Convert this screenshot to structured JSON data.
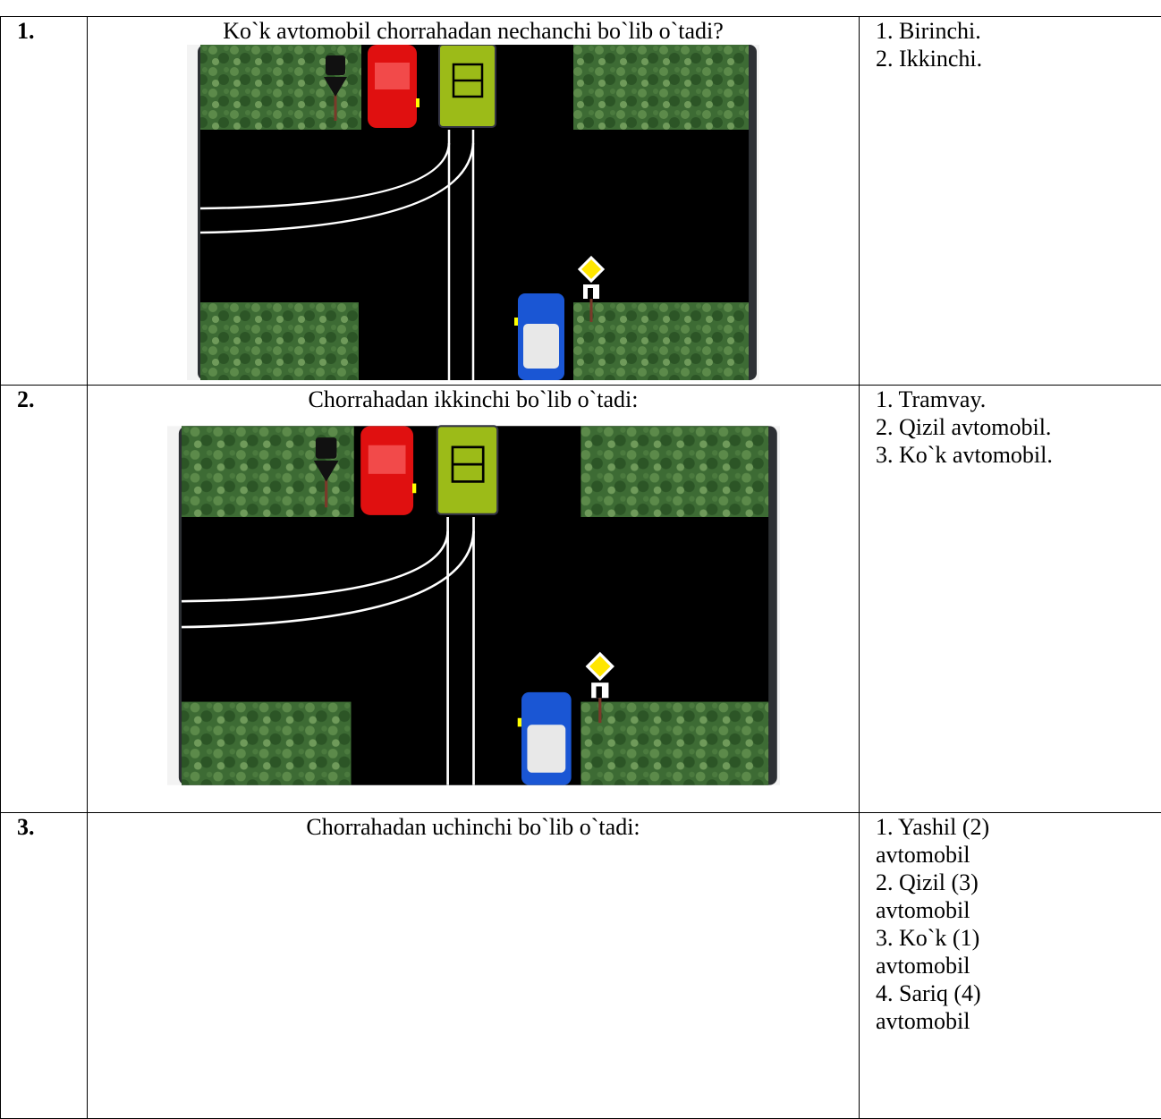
{
  "table": {
    "rows": [
      {
        "number": "1.",
        "question": "Ko`k avtomobil chorrahadan nechanchi bo`lib o`tadi?",
        "answers": [
          "1. Birinchi.",
          "2. Ikkinchi."
        ]
      },
      {
        "number": "2.",
        "question": "Chorrahadan ikkinchi bo`lib o`tadi:",
        "answers": [
          "1. Tramvay.",
          "2. Qizil avtomobil.",
          "3. Ko`k avtomobil."
        ]
      },
      {
        "number": "3.",
        "question": "Chorrahadan uchinchi bo`lib o`tadi:",
        "answers": [
          "1. Yashil (2) avtomobil",
          "2. Qizil (3) avtomobil",
          "3. Ko`k (1) avtomobil",
          "4. Sariq (4) avtomobil"
        ]
      }
    ]
  }
}
